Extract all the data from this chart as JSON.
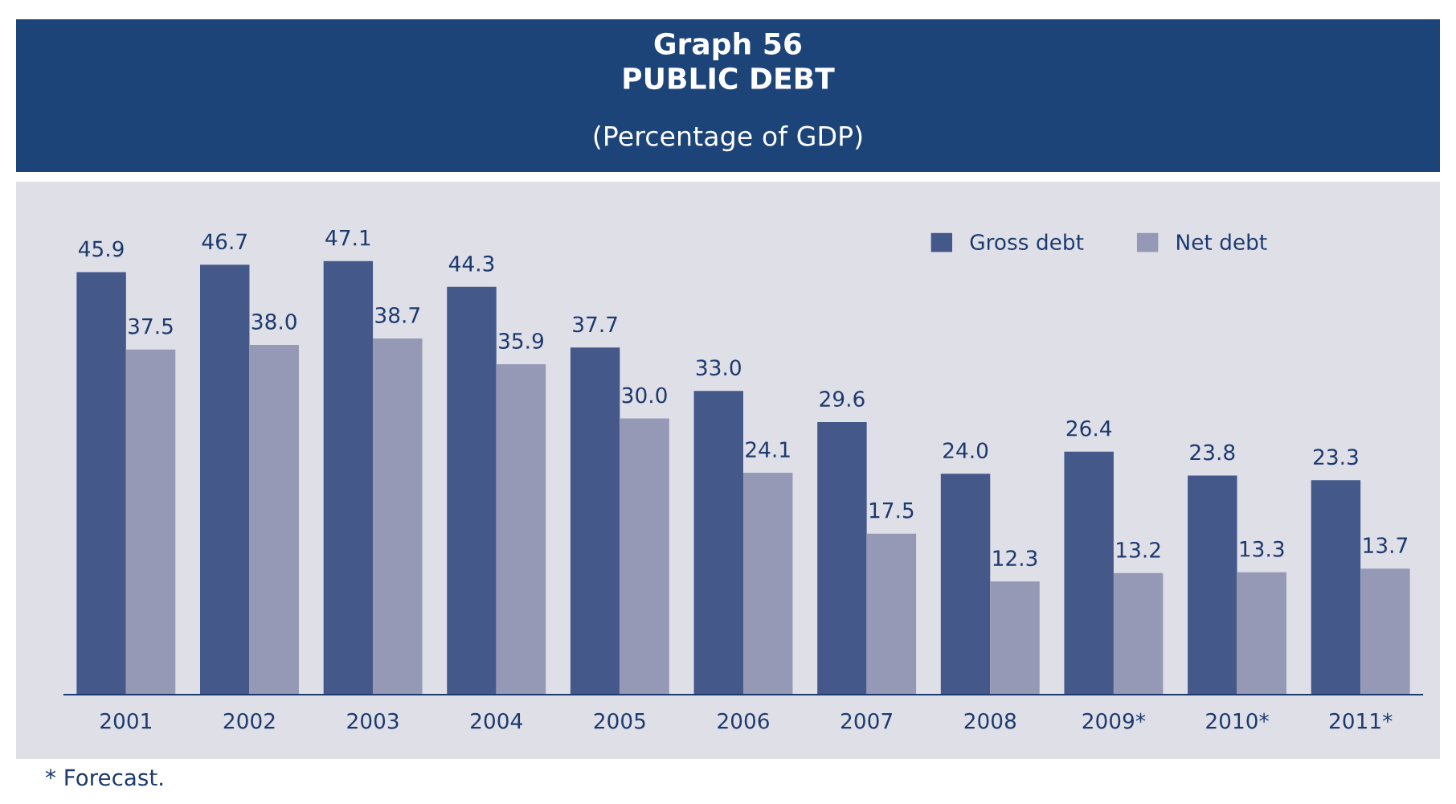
{
  "chart_data": {
    "type": "bar",
    "title": "Graph 56\nPUBLIC DEBT",
    "subtitle": "(Percentage of GDP)",
    "categories": [
      "2001",
      "2002",
      "2003",
      "2004",
      "2005",
      "2006",
      "2007",
      "2008",
      "2009*",
      "2010*",
      "2011*"
    ],
    "series": [
      {
        "name": "Gross debt",
        "color": "#45588a",
        "values": [
          45.9,
          46.7,
          47.1,
          44.3,
          37.7,
          33.0,
          29.6,
          24.0,
          26.4,
          23.8,
          23.3
        ],
        "value_labels": [
          "45.9",
          "46.7",
          "47.1",
          "44.3",
          "37.7",
          "33.0",
          "29.6",
          "24.0",
          "26.4",
          "23.8",
          "23.3"
        ]
      },
      {
        "name": "Net debt",
        "color": "#9699b6",
        "values": [
          37.5,
          38.0,
          38.7,
          35.9,
          30.0,
          24.1,
          17.5,
          12.3,
          13.2,
          13.3,
          13.7
        ],
        "value_labels": [
          "37.5",
          "38.0",
          "38.7",
          "35.9",
          "30.0",
          "24.1",
          "17.5",
          "12.3",
          "13.2",
          "13.3",
          "13.7"
        ]
      }
    ],
    "legend": "top right",
    "grid": false,
    "annotations": [
      "* Forecast."
    ]
  }
}
